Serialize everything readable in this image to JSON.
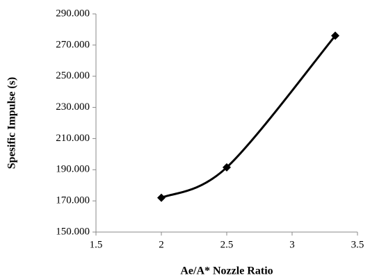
{
  "chart_data": {
    "type": "line",
    "x_label": "Ae/A* Nozzle Ratio",
    "y_label": "Spesific Impulse (s)",
    "x": [
      2,
      2.5,
      3.33
    ],
    "values": [
      172,
      191.5,
      276
    ],
    "color": "#000000",
    "smooth": true,
    "marker": "diamond",
    "xlim": [
      1.5,
      3.5
    ],
    "xticks": [
      1.5,
      2,
      2.5,
      3,
      3.5
    ],
    "ylim": [
      150,
      290
    ],
    "yticks": [
      {
        "value": 150,
        "label": "150.000"
      },
      {
        "value": 170,
        "label": "170.000"
      },
      {
        "value": 190,
        "label": "190.000"
      },
      {
        "value": 210,
        "label": "210.000"
      },
      {
        "value": 230,
        "label": "230.000"
      },
      {
        "value": 250,
        "label": "250.000"
      },
      {
        "value": 270,
        "label": "270.000"
      },
      {
        "value": 290,
        "label": "290.000"
      }
    ],
    "grid": false
  }
}
